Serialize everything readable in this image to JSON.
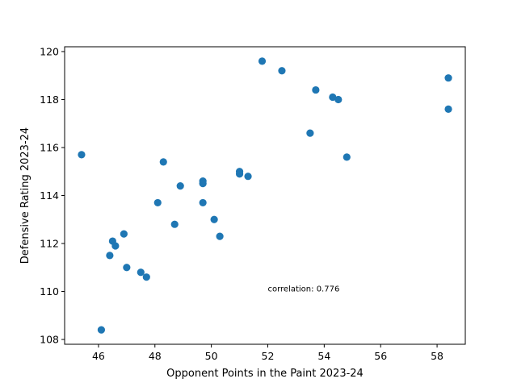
{
  "chart_data": {
    "type": "scatter",
    "title": "",
    "xlabel": "Opponent Points in the Paint 2023-24",
    "ylabel": "Defensive Rating 2023-24",
    "xlim": [
      44.8,
      59.0
    ],
    "ylim": [
      107.8,
      120.2
    ],
    "xticks": [
      46,
      48,
      50,
      52,
      54,
      56,
      58
    ],
    "yticks": [
      108,
      110,
      112,
      114,
      116,
      118,
      120
    ],
    "grid": false,
    "marker_color": "#1f77b4",
    "annotation": {
      "text": "correlation: 0.776",
      "x": 52.0,
      "y": 110.0
    },
    "points": [
      {
        "x": 45.4,
        "y": 115.7
      },
      {
        "x": 46.1,
        "y": 108.4
      },
      {
        "x": 46.4,
        "y": 111.5
      },
      {
        "x": 46.5,
        "y": 112.1
      },
      {
        "x": 46.6,
        "y": 111.9
      },
      {
        "x": 46.9,
        "y": 112.4
      },
      {
        "x": 47.0,
        "y": 111.0
      },
      {
        "x": 47.5,
        "y": 110.8
      },
      {
        "x": 47.7,
        "y": 110.6
      },
      {
        "x": 48.1,
        "y": 113.7
      },
      {
        "x": 48.3,
        "y": 115.4
      },
      {
        "x": 48.7,
        "y": 112.8
      },
      {
        "x": 48.9,
        "y": 114.4
      },
      {
        "x": 49.7,
        "y": 114.6
      },
      {
        "x": 49.7,
        "y": 114.5
      },
      {
        "x": 49.7,
        "y": 113.7
      },
      {
        "x": 50.1,
        "y": 113.0
      },
      {
        "x": 50.3,
        "y": 112.3
      },
      {
        "x": 51.0,
        "y": 115.0
      },
      {
        "x": 51.0,
        "y": 114.9
      },
      {
        "x": 51.3,
        "y": 114.8
      },
      {
        "x": 51.8,
        "y": 119.6
      },
      {
        "x": 52.5,
        "y": 119.2
      },
      {
        "x": 53.5,
        "y": 116.6
      },
      {
        "x": 53.7,
        "y": 118.4
      },
      {
        "x": 54.3,
        "y": 118.1
      },
      {
        "x": 54.5,
        "y": 118.0
      },
      {
        "x": 54.8,
        "y": 115.6
      },
      {
        "x": 58.4,
        "y": 118.9
      },
      {
        "x": 58.4,
        "y": 117.6
      }
    ]
  }
}
